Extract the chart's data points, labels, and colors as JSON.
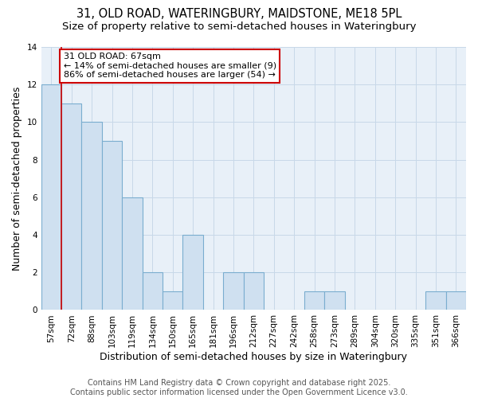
{
  "title": "31, OLD ROAD, WATERINGBURY, MAIDSTONE, ME18 5PL",
  "subtitle": "Size of property relative to semi-detached houses in Wateringbury",
  "xlabel": "Distribution of semi-detached houses by size in Wateringbury",
  "ylabel": "Number of semi-detached properties",
  "categories": [
    "57sqm",
    "72sqm",
    "88sqm",
    "103sqm",
    "119sqm",
    "134sqm",
    "150sqm",
    "165sqm",
    "181sqm",
    "196sqm",
    "212sqm",
    "227sqm",
    "242sqm",
    "258sqm",
    "273sqm",
    "289sqm",
    "304sqm",
    "320sqm",
    "335sqm",
    "351sqm",
    "366sqm"
  ],
  "values": [
    12,
    11,
    10,
    9,
    6,
    2,
    1,
    4,
    0,
    2,
    2,
    0,
    0,
    1,
    1,
    0,
    0,
    0,
    0,
    1,
    1
  ],
  "bar_color": "#cfe0f0",
  "bar_edge_color": "#7aadcf",
  "subject_label": "31 OLD ROAD: 67sqm",
  "annotation_line1": "← 14% of semi-detached houses are smaller (9)",
  "annotation_line2": "86% of semi-detached houses are larger (54) →",
  "annotation_box_color": "#ffffff",
  "annotation_box_edge": "#cc0000",
  "subject_line_color": "#cc0000",
  "subject_line_index": 1,
  "ylim": [
    0,
    14
  ],
  "yticks": [
    0,
    2,
    4,
    6,
    8,
    10,
    12,
    14
  ],
  "footer1": "Contains HM Land Registry data © Crown copyright and database right 2025.",
  "footer2": "Contains public sector information licensed under the Open Government Licence v3.0.",
  "background_color": "#ffffff",
  "plot_bg_color": "#e8f0f8",
  "grid_color": "#c8d8e8",
  "title_fontsize": 10.5,
  "subtitle_fontsize": 9.5,
  "axis_label_fontsize": 9,
  "tick_fontsize": 7.5,
  "footer_fontsize": 7,
  "annotation_fontsize": 8
}
